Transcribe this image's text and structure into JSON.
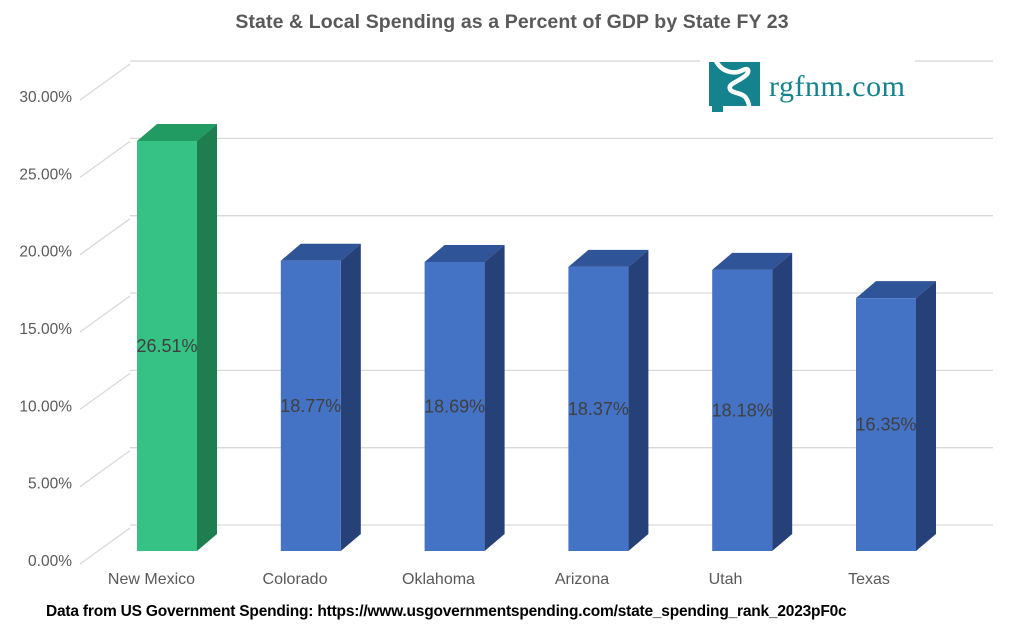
{
  "chart_data": {
    "type": "bar",
    "style": "3d-column",
    "title": "State & Local Spending as a Percent of GDP by State FY 23",
    "categories": [
      "New Mexico",
      "Colorado",
      "Oklahoma",
      "Arizona",
      "Utah",
      "Texas"
    ],
    "values": [
      26.51,
      18.77,
      18.69,
      18.37,
      18.18,
      16.35
    ],
    "data_labels": [
      "26.51%",
      "18.77%",
      "18.69%",
      "18.37%",
      "18.18%",
      "16.35%"
    ],
    "y_axis": {
      "ticks": [
        "0.00%",
        "5.00%",
        "10.00%",
        "15.00%",
        "20.00%",
        "25.00%",
        "30.00%"
      ],
      "min": 0,
      "max": 30,
      "step": 5
    },
    "xlabel": "",
    "ylabel": "",
    "legend": "none",
    "grid": true,
    "highlight_index": 0,
    "colors": {
      "highlight": {
        "front": "#35C284",
        "top": "#229B62",
        "side": "#1E7E50"
      },
      "default": {
        "front": "#4472C4",
        "top": "#2F5498",
        "side": "#264078"
      },
      "gridline": "#D9D9D9",
      "title_text": "#595959",
      "axis_text": "#595959",
      "data_label_text": "#3F3F3F"
    }
  },
  "logo": {
    "text": "rgfnm.com",
    "color": "#15838D",
    "icon": "new-mexico-river-icon"
  },
  "caption": {
    "text": "Data from US Government Spending: https://www.usgovernmentspending.com/state_spending_rank_2023pF0c"
  }
}
